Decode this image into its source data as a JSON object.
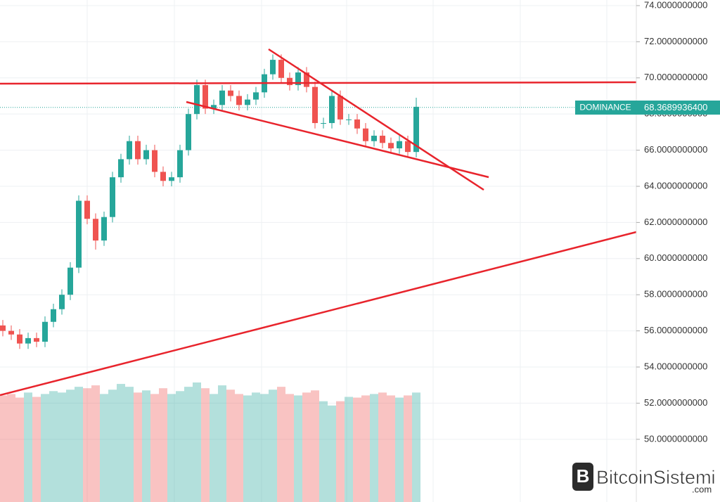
{
  "chart_data": {
    "type": "candlestick",
    "series_name": "DOMINANCE",
    "price_line": {
      "value": 68.36899364,
      "label": "68.3689936400"
    },
    "up_color": "#26a69a",
    "down_color": "#ef5350",
    "open": [
      56.3,
      56.0,
      55.8,
      55.3,
      55.6,
      55.4,
      56.5,
      57.2,
      58.0,
      59.5,
      63.2,
      62.2,
      61.0,
      62.3,
      64.5,
      65.5,
      66.5,
      65.5,
      66.0,
      64.8,
      64.3,
      64.5,
      66.0,
      68.0,
      69.6,
      68.3,
      68.5,
      69.3,
      69.0,
      68.5,
      68.8,
      69.2,
      70.2,
      71.0,
      70.0,
      69.6,
      70.3,
      69.5,
      67.5,
      67.5,
      69.0,
      67.7,
      67.7,
      67.2,
      66.5,
      66.8,
      66.4,
      66.1,
      66.5,
      65.9
    ],
    "high": [
      56.6,
      56.3,
      56.1,
      55.9,
      55.9,
      56.8,
      57.5,
      58.3,
      59.8,
      63.5,
      63.5,
      62.5,
      62.6,
      64.8,
      65.8,
      66.8,
      66.8,
      66.3,
      66.3,
      65.1,
      64.8,
      66.3,
      68.3,
      69.9,
      69.9,
      68.8,
      69.6,
      69.6,
      69.3,
      69.1,
      69.5,
      70.5,
      71.3,
      71.3,
      70.3,
      70.6,
      70.6,
      69.8,
      67.8,
      69.3,
      69.3,
      68.0,
      68.0,
      67.5,
      67.1,
      67.1,
      66.7,
      66.8,
      66.8,
      68.9
    ],
    "low": [
      55.7,
      55.5,
      55.0,
      55.0,
      55.1,
      55.1,
      56.2,
      56.9,
      57.7,
      59.2,
      61.9,
      60.5,
      60.7,
      62.0,
      64.2,
      65.2,
      65.2,
      65.2,
      64.5,
      64.0,
      64.0,
      64.2,
      65.7,
      67.7,
      68.0,
      68.0,
      68.2,
      68.7,
      68.2,
      68.2,
      68.5,
      68.9,
      69.9,
      69.7,
      69.3,
      69.3,
      69.2,
      67.2,
      67.2,
      67.2,
      67.4,
      67.4,
      66.9,
      66.2,
      66.2,
      66.1,
      65.8,
      65.8,
      65.6,
      65.6
    ],
    "close": [
      56.0,
      55.8,
      55.3,
      55.6,
      55.4,
      56.5,
      57.2,
      58.0,
      59.5,
      63.2,
      62.2,
      61.0,
      62.3,
      64.5,
      65.5,
      66.5,
      65.5,
      66.0,
      64.8,
      64.3,
      64.5,
      66.0,
      68.0,
      69.6,
      68.3,
      68.5,
      69.3,
      69.0,
      68.5,
      68.8,
      69.2,
      70.2,
      71.0,
      70.0,
      69.6,
      70.3,
      69.5,
      67.5,
      67.5,
      69.0,
      67.7,
      67.7,
      67.2,
      66.5,
      66.8,
      66.4,
      66.1,
      66.5,
      65.9,
      68.4
    ],
    "volume": [
      148,
      150,
      145,
      152,
      146,
      150,
      154,
      152,
      156,
      160,
      158,
      162,
      150,
      156,
      164,
      160,
      152,
      155,
      150,
      158,
      150,
      154,
      160,
      166,
      158,
      150,
      162,
      156,
      150,
      148,
      152,
      150,
      156,
      160,
      150,
      148,
      152,
      155,
      140,
      134,
      140,
      146,
      145,
      148,
      150,
      152,
      148,
      145,
      148,
      152
    ],
    "ylim": [
      46.53,
      74.31
    ],
    "yticks": [
      {
        "value": 50,
        "label": "50.0000000000"
      },
      {
        "value": 52,
        "label": "52.0000000000"
      },
      {
        "value": 54,
        "label": "54.0000000000"
      },
      {
        "value": 56,
        "label": "56.0000000000"
      },
      {
        "value": 58,
        "label": "58.0000000000"
      },
      {
        "value": 60,
        "label": "60.0000000000"
      },
      {
        "value": 62,
        "label": "62.0000000000"
      },
      {
        "value": 64,
        "label": "64.0000000000"
      },
      {
        "value": 66,
        "label": "66.0000000000"
      },
      {
        "value": 68,
        "label": "68.0000000000"
      },
      {
        "value": 70,
        "label": "70.0000000000"
      },
      {
        "value": 72,
        "label": "72.0000000000"
      },
      {
        "value": 74,
        "label": "74.0000000000"
      }
    ],
    "grid": true,
    "watermark": "BitcoinSistemi",
    "watermark_suffix": ".com"
  }
}
